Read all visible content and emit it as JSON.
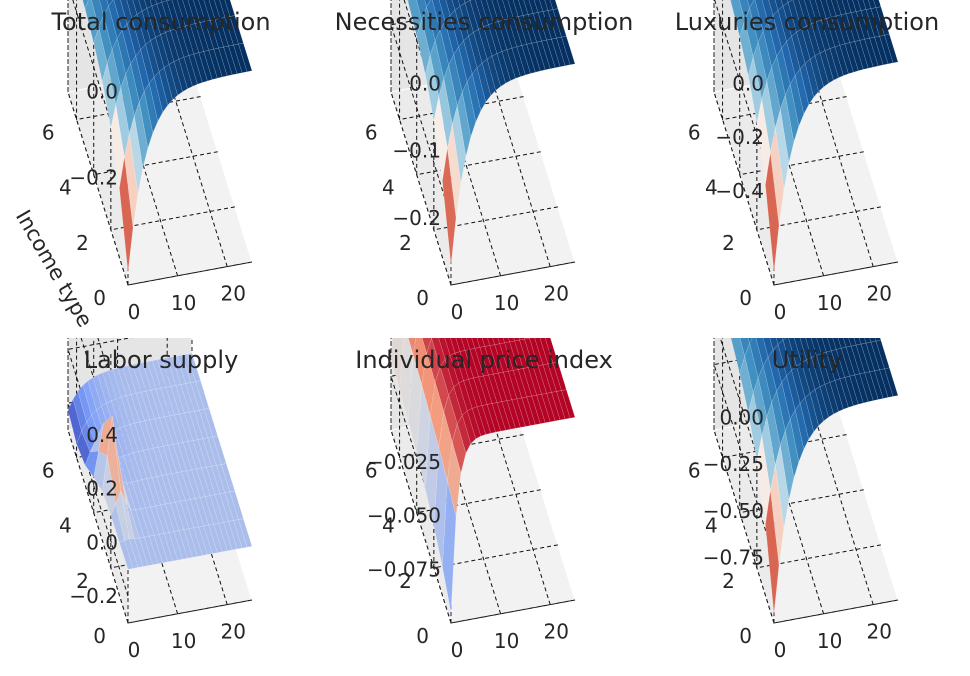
{
  "chart_data": [
    {
      "type": "surface3d",
      "title": "Total consumption",
      "colormap": "RdBu",
      "x_ticks": [
        0,
        10,
        20
      ],
      "y_ticks": [
        0,
        2,
        4,
        6
      ],
      "z_ticks": [
        "0.0",
        "−0.2"
      ],
      "xlim": [
        0,
        25
      ],
      "ylim": [
        0,
        7
      ],
      "zlim": [
        -0.45,
        0.05
      ],
      "ylabel": "Income type",
      "surface": {
        "min_value": -0.42,
        "plateau": -0.005,
        "rate": 0.28,
        "shape": "dip"
      }
    },
    {
      "type": "surface3d",
      "title": "Necessities consumption",
      "colormap": "RdBu",
      "x_ticks": [
        0,
        10,
        20
      ],
      "y_ticks": [
        0,
        2,
        4,
        6
      ],
      "z_ticks": [
        "0.0",
        "−0.1",
        "−0.2"
      ],
      "xlim": [
        0,
        25
      ],
      "ylim": [
        0,
        7
      ],
      "zlim": [
        -0.3,
        0.02
      ],
      "surface": {
        "min_value": -0.27,
        "plateau": -0.005,
        "rate": 0.3,
        "shape": "dip"
      }
    },
    {
      "type": "surface3d",
      "title": "Luxuries consumption",
      "colormap": "RdBu",
      "x_ticks": [
        0,
        10,
        20
      ],
      "y_ticks": [
        0,
        2,
        4,
        6
      ],
      "z_ticks": [
        "0.0",
        "−0.2",
        "−0.4"
      ],
      "xlim": [
        0,
        25
      ],
      "ylim": [
        0,
        7
      ],
      "zlim": [
        -0.75,
        0.05
      ],
      "surface": {
        "min_value": -0.7,
        "plateau": -0.005,
        "rate": 0.28,
        "shape": "dip"
      }
    },
    {
      "type": "surface3d",
      "title": "Labor supply",
      "colormap": "coolwarm",
      "x_ticks": [
        0,
        10,
        20
      ],
      "y_ticks": [
        0,
        2,
        4,
        6
      ],
      "z_ticks": [
        "0.4",
        "0.2",
        "0.0",
        "−0.2"
      ],
      "xlim": [
        0,
        25
      ],
      "ylim": [
        0,
        7
      ],
      "zlim": [
        -0.3,
        0.5
      ],
      "surface": {
        "min_value": -0.25,
        "peak_value": 0.18,
        "plateau": -0.1,
        "shape": "spike"
      }
    },
    {
      "type": "surface3d",
      "title": "Individual price index",
      "colormap": "coolwarm",
      "x_ticks": [
        0,
        10,
        20
      ],
      "y_ticks": [
        0,
        2,
        4,
        6
      ],
      "z_ticks": [
        "−0.025",
        "−0.050",
        "−0.075"
      ],
      "xlim": [
        0,
        25
      ],
      "ylim": [
        0,
        7
      ],
      "zlim": [
        -0.1,
        0.0
      ],
      "surface": {
        "min_value": -0.095,
        "plateau": -0.015,
        "rate": 0.8,
        "shape": "step"
      }
    },
    {
      "type": "surface3d",
      "title": "Utility",
      "colormap": "RdBu",
      "x_ticks": [
        0,
        10,
        20
      ],
      "y_ticks": [
        0,
        2,
        4,
        6
      ],
      "z_ticks": [
        "0.00",
        "−0.25",
        "−0.50",
        "−0.75"
      ],
      "xlim": [
        0,
        25
      ],
      "ylim": [
        0,
        7
      ],
      "zlim": [
        -1.1,
        0.05
      ],
      "surface": {
        "min_value": -1.05,
        "plateau": -0.005,
        "rate": 0.28,
        "shape": "dip"
      }
    }
  ]
}
